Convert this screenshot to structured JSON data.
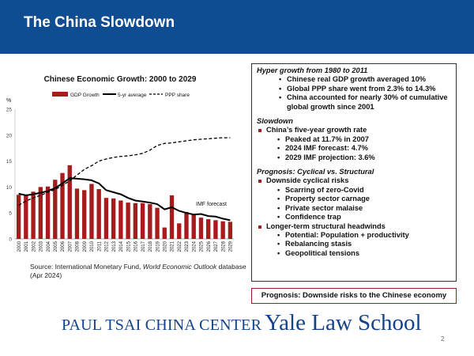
{
  "slide": {
    "title": "The China Slowdown",
    "source_prefix": "Source: International Monetary Fund, ",
    "source_title": "World Economic Outlook",
    "source_suffix": " database (Apr 2024)",
    "footer_center": "PAUL TSAI CHINA CENTER",
    "footer_school": "Yale Law School",
    "page_number": "2",
    "bottom_box": "Prognosis: Downside risks to the Chinese economy",
    "colors": {
      "title_bar": "#0f4d92",
      "bars": "#a61c1c",
      "footer": "#12438a",
      "accent": "#a61c1c"
    }
  },
  "panel": {
    "hyper": {
      "heading": "Hyper growth from 1980 to 2011",
      "bullets": [
        "Chinese real GDP growth averaged 10%",
        "Global PPP share went from 2.3% to 14.3%",
        "China accounted for nearly 30% of cumulative global growth since 2001"
      ]
    },
    "slowdown": {
      "heading": "Slowdown",
      "main": "China’s five-year growth rate",
      "bullets": [
        "Peaked at 11.7% in 2007",
        "2024 IMF forecast: 4.7%",
        "2029 IMF projection: 3.6%"
      ]
    },
    "prognosis": {
      "heading": "Prognosis: Cyclical vs. Structural",
      "cyclical": "Downside cyclical risks",
      "cyclical_items": [
        "Scarring of zero-Covid",
        "Property sector carnage",
        "Private sector malaise",
        "Confidence trap"
      ],
      "structural": "Longer-term structural headwinds",
      "structural_items": [
        "Potential: Population + productivity",
        "Rebalancing stasis",
        "Geopolitical tensions"
      ]
    }
  },
  "chart_data": {
    "type": "bar",
    "title": "Chinese Economic Growth: 2000 to 2029",
    "ylabel": "%",
    "ylim": [
      0,
      25
    ],
    "yticks": [
      0,
      5,
      10,
      15,
      20,
      25
    ],
    "grid": false,
    "legend_position": "top",
    "annotation": "IMF forecast",
    "categories": [
      "2000",
      "2001",
      "2002",
      "2003",
      "2004",
      "2005",
      "2006",
      "2007",
      "2008",
      "2009",
      "2010",
      "2011",
      "2012",
      "2013",
      "2014",
      "2015",
      "2016",
      "2017",
      "2018",
      "2019",
      "2020",
      "2021",
      "2022",
      "2023",
      "2024",
      "2025",
      "2026",
      "2027",
      "2028",
      "2029"
    ],
    "series": [
      {
        "name": "GDP Growth",
        "kind": "bar",
        "values": [
          8.5,
          8.3,
          9.1,
          10.0,
          10.1,
          11.4,
          12.7,
          14.2,
          9.7,
          9.4,
          10.6,
          9.6,
          7.9,
          7.8,
          7.4,
          7.0,
          6.9,
          6.9,
          6.7,
          6.0,
          2.2,
          8.4,
          3.0,
          5.2,
          4.6,
          4.1,
          3.8,
          3.6,
          3.4,
          3.3
        ]
      },
      {
        "name": "5-yr average",
        "kind": "line",
        "style": "solid",
        "values": [
          8.7,
          8.4,
          8.6,
          8.9,
          9.2,
          9.8,
          10.7,
          11.7,
          11.6,
          11.5,
          11.3,
          10.7,
          9.4,
          9.0,
          8.6,
          7.9,
          7.4,
          7.2,
          7.0,
          6.7,
          5.7,
          6.1,
          5.4,
          5.0,
          4.7,
          4.8,
          4.4,
          4.3,
          3.9,
          3.6
        ]
      },
      {
        "name": "PPP share",
        "kind": "line",
        "style": "dashed",
        "values": [
          6.5,
          7.3,
          7.9,
          8.4,
          9.0,
          9.5,
          10.3,
          11.2,
          12.3,
          13.4,
          14.1,
          15.0,
          15.4,
          15.7,
          15.9,
          16.0,
          16.2,
          16.5,
          17.1,
          18.0,
          18.4,
          18.5,
          18.7,
          18.9,
          19.1,
          19.2,
          19.3,
          19.4,
          19.5,
          19.5
        ]
      }
    ]
  }
}
